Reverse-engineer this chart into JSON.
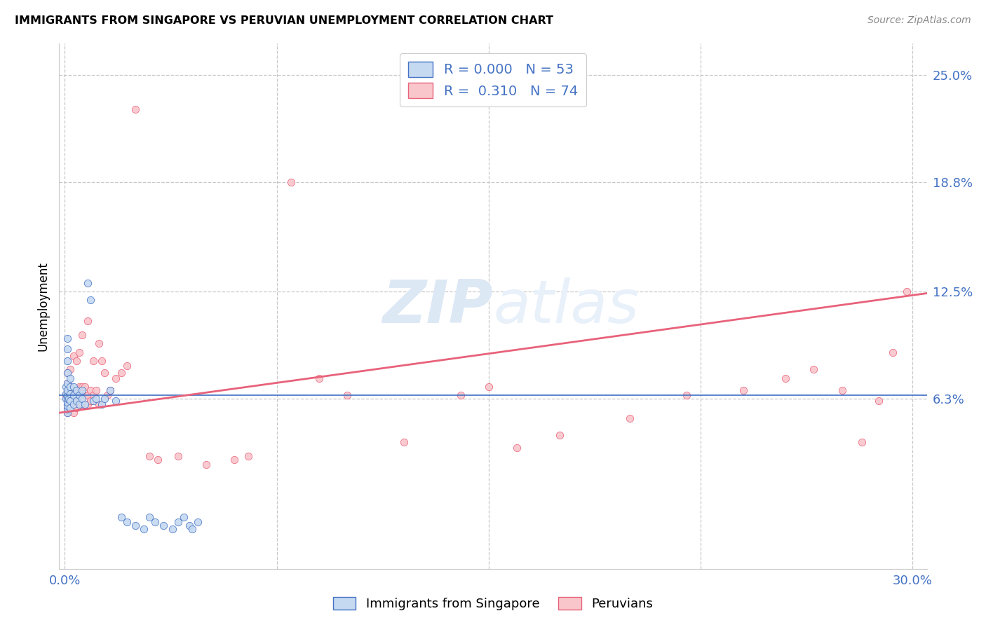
{
  "title": "IMMIGRANTS FROM SINGAPORE VS PERUVIAN UNEMPLOYMENT CORRELATION CHART",
  "source": "Source: ZipAtlas.com",
  "ylabel": "Unemployment",
  "xlim": [
    -0.002,
    0.305
  ],
  "ylim": [
    -0.035,
    0.268
  ],
  "ytick_vals": [
    0.063,
    0.125,
    0.188,
    0.25
  ],
  "ytick_labels": [
    "6.3%",
    "12.5%",
    "18.8%",
    "25.0%"
  ],
  "xtick_vals": [
    0.0,
    0.075,
    0.15,
    0.225,
    0.3
  ],
  "xtick_labels": [
    "0.0%",
    "",
    "",
    "",
    "30.0%"
  ],
  "legend1_r": "0.000",
  "legend1_n": "53",
  "legend2_r": "0.310",
  "legend2_n": "74",
  "color_blue_fill": "#c5d9f1",
  "color_blue_edge": "#4472c4",
  "color_pink_fill": "#f9c6cc",
  "color_pink_edge": "#e8627a",
  "color_label": "#4472c4",
  "trend_pink_color": "#e8627a",
  "trend_blue_color": "#4472c4",
  "watermark_color": "#dde8f5",
  "grid_color": "#c8c8c8",
  "sg_x": [
    0.0005,
    0.0005,
    0.0005,
    0.0008,
    0.001,
    0.001,
    0.001,
    0.001,
    0.001,
    0.001,
    0.001,
    0.001,
    0.001,
    0.001,
    0.001,
    0.001,
    0.0015,
    0.002,
    0.002,
    0.002,
    0.002,
    0.002,
    0.003,
    0.003,
    0.003,
    0.004,
    0.004,
    0.005,
    0.005,
    0.006,
    0.006,
    0.007,
    0.008,
    0.009,
    0.01,
    0.011,
    0.013,
    0.014,
    0.016,
    0.018,
    0.02,
    0.022,
    0.025,
    0.028,
    0.03,
    0.032,
    0.035,
    0.038,
    0.04,
    0.042,
    0.044,
    0.045,
    0.047
  ],
  "sg_y": [
    0.063,
    0.066,
    0.07,
    0.06,
    0.055,
    0.057,
    0.059,
    0.061,
    0.063,
    0.065,
    0.068,
    0.072,
    0.078,
    0.085,
    0.092,
    0.098,
    0.063,
    0.058,
    0.062,
    0.066,
    0.07,
    0.075,
    0.06,
    0.065,
    0.07,
    0.062,
    0.068,
    0.06,
    0.065,
    0.063,
    0.068,
    0.06,
    0.13,
    0.12,
    0.062,
    0.063,
    0.06,
    0.063,
    0.068,
    0.062,
    -0.005,
    -0.008,
    -0.01,
    -0.012,
    -0.005,
    -0.008,
    -0.01,
    -0.012,
    -0.008,
    -0.005,
    -0.01,
    -0.012,
    -0.008
  ],
  "pe_x": [
    0.0005,
    0.001,
    0.001,
    0.001,
    0.001,
    0.001,
    0.001,
    0.001,
    0.002,
    0.002,
    0.002,
    0.002,
    0.002,
    0.003,
    0.003,
    0.003,
    0.003,
    0.004,
    0.004,
    0.004,
    0.004,
    0.005,
    0.005,
    0.005,
    0.005,
    0.006,
    0.006,
    0.006,
    0.006,
    0.007,
    0.007,
    0.007,
    0.008,
    0.008,
    0.008,
    0.009,
    0.009,
    0.01,
    0.01,
    0.011,
    0.012,
    0.012,
    0.013,
    0.014,
    0.015,
    0.016,
    0.018,
    0.02,
    0.022,
    0.025,
    0.03,
    0.033,
    0.04,
    0.05,
    0.06,
    0.065,
    0.08,
    0.09,
    0.1,
    0.12,
    0.14,
    0.15,
    0.16,
    0.175,
    0.2,
    0.22,
    0.24,
    0.255,
    0.265,
    0.275,
    0.282,
    0.288,
    0.293,
    0.298
  ],
  "pe_y": [
    0.065,
    0.055,
    0.058,
    0.062,
    0.065,
    0.068,
    0.072,
    0.078,
    0.058,
    0.062,
    0.066,
    0.07,
    0.08,
    0.055,
    0.06,
    0.065,
    0.088,
    0.058,
    0.062,
    0.068,
    0.085,
    0.06,
    0.065,
    0.07,
    0.09,
    0.06,
    0.065,
    0.07,
    0.1,
    0.06,
    0.065,
    0.07,
    0.06,
    0.065,
    0.108,
    0.062,
    0.068,
    0.065,
    0.085,
    0.068,
    0.06,
    0.095,
    0.085,
    0.078,
    0.065,
    0.068,
    0.075,
    0.078,
    0.082,
    0.23,
    0.03,
    0.028,
    0.03,
    0.025,
    0.028,
    0.03,
    0.188,
    0.075,
    0.065,
    0.038,
    0.065,
    0.07,
    0.035,
    0.042,
    0.052,
    0.065,
    0.068,
    0.075,
    0.08,
    0.068,
    0.038,
    0.062,
    0.09,
    0.125
  ],
  "trend_blue_y0": 0.065,
  "trend_blue_y1": 0.065,
  "trend_pink_y0": 0.055,
  "trend_pink_y1": 0.124
}
